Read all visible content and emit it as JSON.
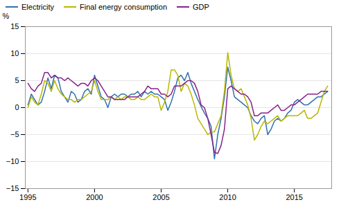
{
  "chart_data": {
    "type": "line",
    "ylabel": "%",
    "x": [
      1995.0,
      1995.25,
      1995.5,
      1995.75,
      1996.0,
      1996.25,
      1996.5,
      1996.75,
      1997.0,
      1997.25,
      1997.5,
      1997.75,
      1998.0,
      1998.25,
      1998.5,
      1998.75,
      1999.0,
      1999.25,
      1999.5,
      1999.75,
      2000.0,
      2000.25,
      2000.5,
      2000.75,
      2001.0,
      2001.25,
      2001.5,
      2001.75,
      2002.0,
      2002.25,
      2002.5,
      2002.75,
      2003.0,
      2003.25,
      2003.5,
      2003.75,
      2004.0,
      2004.25,
      2004.5,
      2004.75,
      2005.0,
      2005.25,
      2005.5,
      2005.75,
      2006.0,
      2006.25,
      2006.5,
      2006.75,
      2007.0,
      2007.25,
      2007.5,
      2007.75,
      2008.0,
      2008.25,
      2008.5,
      2008.75,
      2009.0,
      2009.25,
      2009.5,
      2009.75,
      2010.0,
      2010.25,
      2010.5,
      2010.75,
      2011.0,
      2011.25,
      2011.5,
      2011.75,
      2012.0,
      2012.25,
      2012.5,
      2012.75,
      2013.0,
      2013.25,
      2013.5,
      2013.75,
      2014.0,
      2014.25,
      2014.5,
      2014.75,
      2015.0,
      2015.25,
      2015.5,
      2015.75,
      2016.0,
      2016.25,
      2016.5,
      2016.75,
      2017.0,
      2017.25,
      2017.5
    ],
    "series": [
      {
        "name": "Electricity",
        "color": "#3070b0",
        "values": [
          0.5,
          2.5,
          1.5,
          0.5,
          1.0,
          3.0,
          5.5,
          3.5,
          6.0,
          5.5,
          3.0,
          2.0,
          1.0,
          3.0,
          2.5,
          1.0,
          1.5,
          3.0,
          3.5,
          2.5,
          6.0,
          4.0,
          2.0,
          1.5,
          0.0,
          2.0,
          2.5,
          2.0,
          2.5,
          2.5,
          2.0,
          2.5,
          2.5,
          3.0,
          2.0,
          3.0,
          2.5,
          3.0,
          2.5,
          2.5,
          2.0,
          1.5,
          -0.5,
          1.0,
          3.0,
          5.5,
          6.0,
          5.0,
          6.5,
          4.5,
          3.0,
          1.5,
          0.2,
          -1.0,
          -2.0,
          -3.5,
          -9.5,
          -5.0,
          -2.0,
          2.0,
          7.5,
          5.0,
          2.0,
          1.5,
          1.0,
          0.5,
          0.0,
          -1.5,
          -2.5,
          -3.0,
          -2.0,
          -1.5,
          -5.0,
          -4.0,
          -2.5,
          -2.0,
          -2.5,
          -2.0,
          -1.0,
          -0.5,
          1.0,
          1.5,
          1.0,
          0.5,
          0.5,
          1.0,
          1.5,
          2.0,
          2.0,
          2.5,
          3.0
        ]
      },
      {
        "name": "Final energy consumption",
        "color": "#b8b800",
        "values": [
          0.0,
          2.0,
          1.0,
          0.5,
          2.5,
          5.0,
          4.5,
          3.0,
          5.0,
          3.5,
          2.5,
          2.0,
          1.5,
          1.5,
          1.0,
          1.5,
          1.5,
          2.0,
          2.5,
          3.0,
          5.0,
          3.0,
          1.5,
          1.5,
          1.5,
          2.0,
          1.5,
          2.0,
          1.5,
          2.0,
          2.0,
          1.5,
          1.5,
          2.0,
          1.5,
          1.5,
          2.0,
          2.5,
          2.0,
          2.0,
          -0.5,
          1.0,
          3.0,
          7.0,
          7.0,
          6.0,
          3.0,
          4.5,
          4.0,
          2.5,
          0.5,
          -2.0,
          -3.0,
          -4.0,
          -5.0,
          -4.5,
          -4.5,
          -3.0,
          -1.5,
          3.0,
          10.2,
          6.0,
          3.5,
          3.0,
          3.5,
          2.0,
          0.5,
          -2.0,
          -6.0,
          -5.0,
          -3.5,
          -2.5,
          -3.0,
          -2.5,
          -2.0,
          -1.5,
          -2.5,
          -2.0,
          -1.5,
          -1.5,
          -1.5,
          -1.5,
          -1.0,
          -0.5,
          -2.0,
          -2.0,
          -1.5,
          -1.0,
          1.0,
          3.0,
          4.0
        ]
      },
      {
        "name": "GDP",
        "color": "#882288",
        "values": [
          4.5,
          3.5,
          3.0,
          4.0,
          4.5,
          6.5,
          6.5,
          5.5,
          6.0,
          5.5,
          5.5,
          5.0,
          5.5,
          5.0,
          4.5,
          4.0,
          4.5,
          4.5,
          4.0,
          5.0,
          5.5,
          5.0,
          4.0,
          3.0,
          2.0,
          2.0,
          1.5,
          1.5,
          1.5,
          1.5,
          2.0,
          2.0,
          2.0,
          2.0,
          2.5,
          3.0,
          4.0,
          3.5,
          3.5,
          3.5,
          2.5,
          2.5,
          2.0,
          2.5,
          4.0,
          4.0,
          4.0,
          4.5,
          5.0,
          5.0,
          4.5,
          3.0,
          0.5,
          0.0,
          -2.0,
          -5.0,
          -8.3,
          -8.5,
          -7.0,
          -4.0,
          3.5,
          4.0,
          3.5,
          3.0,
          2.5,
          2.5,
          2.0,
          1.0,
          -1.5,
          -1.5,
          -1.0,
          -1.0,
          -1.0,
          -0.5,
          0.0,
          0.5,
          -0.5,
          -0.5,
          0.0,
          0.5,
          0.5,
          1.0,
          1.5,
          2.0,
          2.5,
          2.5,
          2.5,
          2.5,
          3.0,
          3.0,
          3.0
        ]
      }
    ],
    "xlim": [
      1994.8,
      2017.8
    ],
    "xticks": [
      1995,
      2000,
      2005,
      2010,
      2015
    ],
    "ylim": [
      -15,
      15
    ],
    "yticks": [
      -15,
      -10,
      -5,
      0,
      5,
      10,
      15
    ],
    "grid": true,
    "legend": "upper left"
  }
}
